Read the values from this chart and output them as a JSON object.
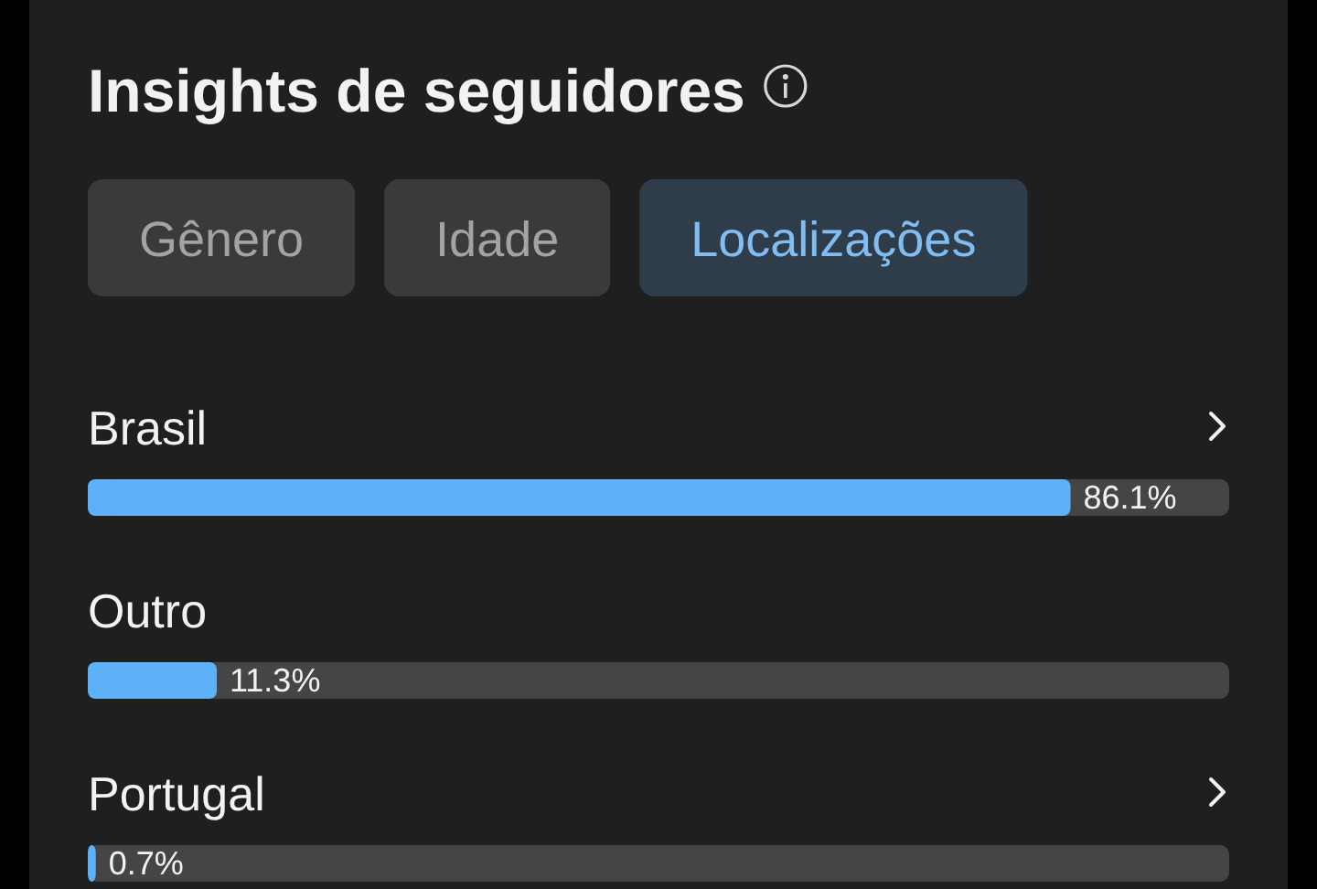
{
  "chart_data": {
    "type": "bar",
    "orientation": "horizontal",
    "title": "Insights de seguidores",
    "annotations": [
      "Gênero",
      "Idade",
      "Localizações"
    ],
    "categories": [
      "Brasil",
      "Outro",
      "Portugal"
    ],
    "values": [
      86.1,
      11.3,
      0.7
    ],
    "color": "#5eb0f7",
    "value_labels": [
      "86.1%",
      "11.3%",
      "0.7%"
    ],
    "xlim": [
      0,
      100
    ],
    "tick_labels": "y"
  }
}
